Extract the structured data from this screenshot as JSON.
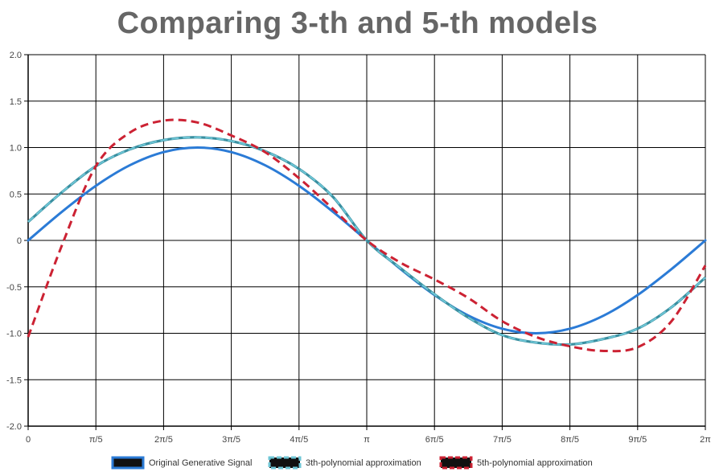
{
  "chart_data": {
    "type": "line",
    "title": "Comparing 3-th and 5-th models",
    "xlabel": "",
    "ylabel": "",
    "ylim": [
      -2.0,
      2.0
    ],
    "y_ticks": [
      "-2.0",
      "-1.5",
      "-1.0",
      "-0.5",
      "0",
      "0.5",
      "1.0",
      "1.5",
      "2.0"
    ],
    "x_tick_labels": [
      "0",
      "π/5",
      "2π/5",
      "3π/5",
      "4π/5",
      "π",
      "6π/5",
      "7π/5",
      "8π/5",
      "9π/5",
      "2π"
    ],
    "x_range": [
      0,
      6.2832
    ],
    "grid": true,
    "legend_position": "bottom",
    "series": [
      {
        "name": "Original Generative Signal",
        "color": "#2b7bd6",
        "style": "solid",
        "x": [
          0,
          0.3142,
          0.6283,
          0.9425,
          1.2566,
          1.5708,
          1.885,
          2.1991,
          2.5133,
          2.8274,
          3.1416,
          3.4558,
          3.7699,
          4.0841,
          4.3982,
          4.7124,
          5.0265,
          5.3407,
          5.6549,
          5.969,
          6.2832
        ],
        "values": [
          0,
          0.309,
          0.588,
          0.809,
          0.951,
          1.0,
          0.951,
          0.809,
          0.588,
          0.309,
          0,
          -0.309,
          -0.588,
          -0.809,
          -0.951,
          -1.0,
          -0.951,
          -0.809,
          -0.588,
          -0.309,
          0
        ]
      },
      {
        "name": "3th-polynomial approximation",
        "color": "#6ec6d6",
        "style": "dashed",
        "x": [
          0,
          0.3142,
          0.6283,
          0.9425,
          1.2566,
          1.5708,
          1.885,
          2.1991,
          2.5133,
          2.8274,
          3.1416,
          3.4558,
          3.7699,
          4.0841,
          4.3982,
          4.7124,
          5.0265,
          5.3407,
          5.6549,
          5.969,
          6.2832
        ],
        "values": [
          0.2,
          0.52,
          0.8,
          0.98,
          1.08,
          1.11,
          1.07,
          0.96,
          0.77,
          0.47,
          0.0,
          -0.3,
          -0.58,
          -0.83,
          -1.02,
          -1.1,
          -1.12,
          -1.06,
          -0.95,
          -0.72,
          -0.4
        ]
      },
      {
        "name": "5th-polynomial approximation",
        "color": "#cc2233",
        "style": "dashed",
        "x": [
          0,
          0.3142,
          0.6283,
          0.9425,
          1.2566,
          1.5708,
          1.885,
          2.1991,
          2.5133,
          2.8274,
          3.1416,
          3.4558,
          3.7699,
          4.0841,
          4.3982,
          4.7124,
          5.0265,
          5.3407,
          5.6549,
          5.969,
          6.2832
        ],
        "values": [
          -1.04,
          -0.05,
          0.8,
          1.16,
          1.29,
          1.27,
          1.13,
          0.95,
          0.67,
          0.34,
          0.0,
          -0.24,
          -0.42,
          -0.62,
          -0.87,
          -1.04,
          -1.14,
          -1.19,
          -1.15,
          -0.87,
          -0.27
        ]
      }
    ]
  }
}
